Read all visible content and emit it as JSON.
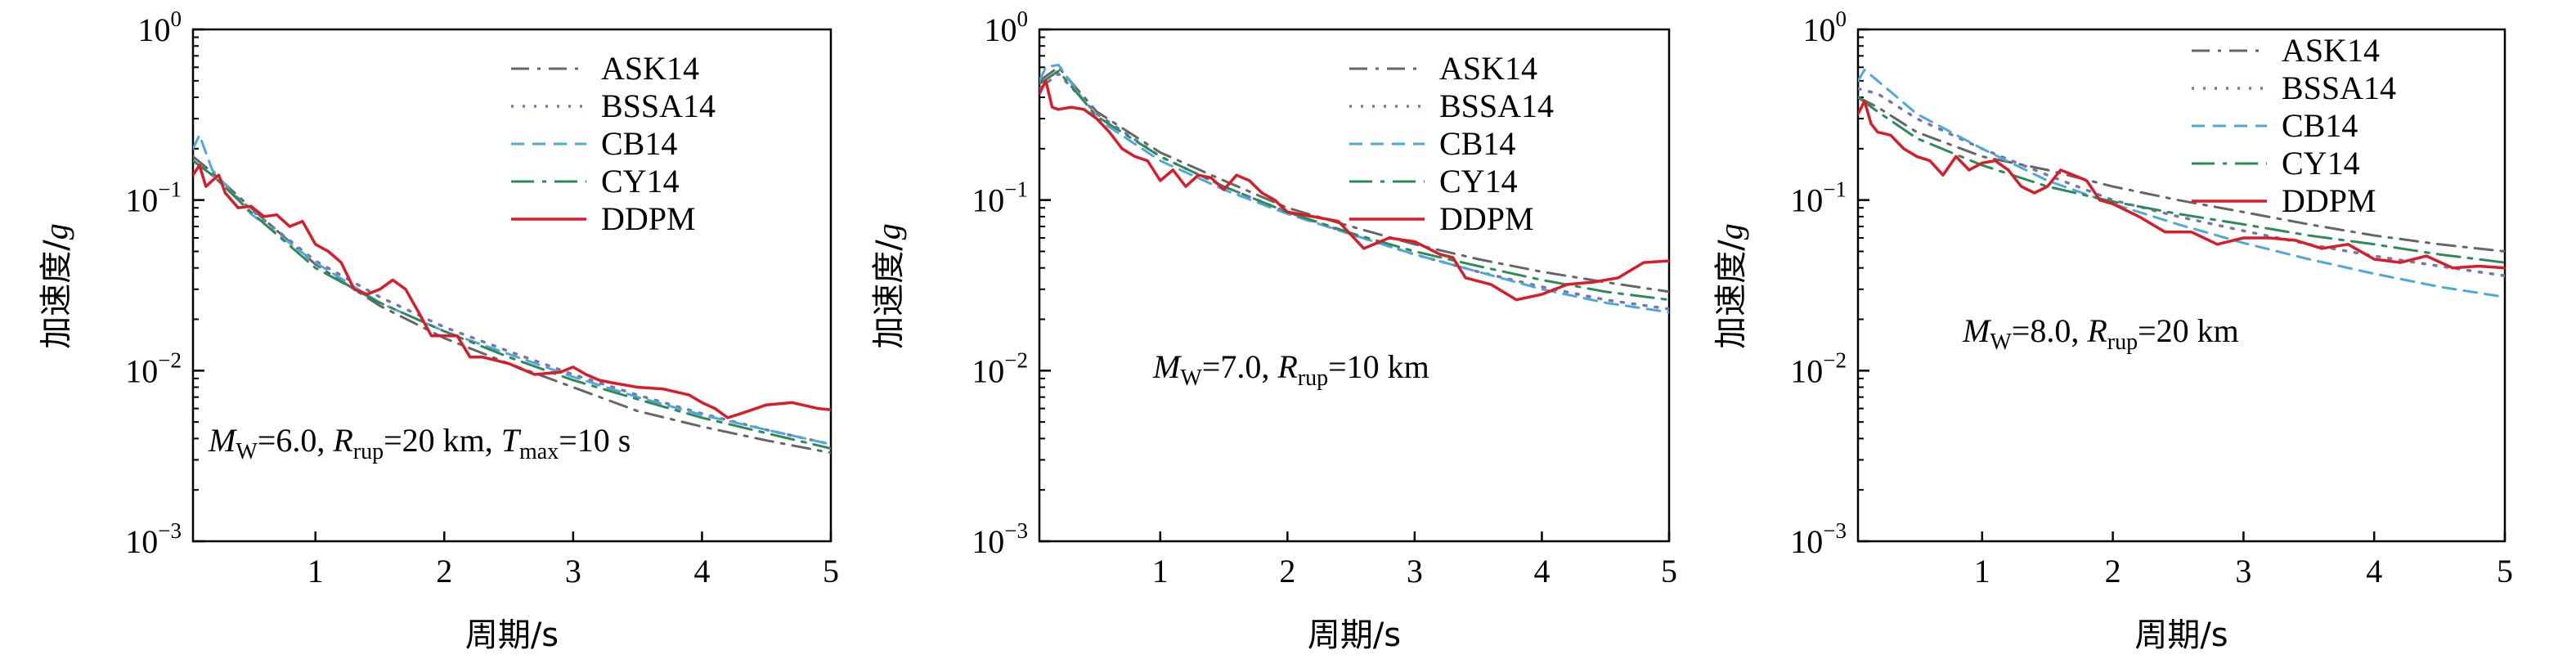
{
  "figure": {
    "colors": {
      "ASK14": "#666666",
      "BSSA14": "#7777aa",
      "CB14": "#4fa8d8",
      "CY14": "#2e8b57",
      "DDPM": "#d91c2a"
    },
    "line_styles": {
      "ASK14": "dashdot",
      "BSSA14": "dotted",
      "CB14": "dashed",
      "CY14": "dashdot-long",
      "DDPM": "solid"
    }
  },
  "chart_data": [
    {
      "type": "line",
      "y_scale": "log",
      "xlabel": "周期/s",
      "ylabel": "加速度/g",
      "ylabel_prefix": "加速度/",
      "ylabel_var": "g",
      "xlim": [
        0.05,
        5
      ],
      "ylim": [
        0.001,
        1
      ],
      "xticks": [
        1,
        2,
        3,
        4,
        5
      ],
      "yticks": [
        0.001,
        0.01,
        0.1,
        1
      ],
      "yticklabels": [
        {
          "base": "10",
          "exp": "−3"
        },
        {
          "base": "10",
          "exp": "−2"
        },
        {
          "base": "10",
          "exp": "−1"
        },
        {
          "base": "10",
          "exp": "0"
        }
      ],
      "legend": [
        "ASK14",
        "BSSA14",
        "CB14",
        "CY14",
        "DDPM"
      ],
      "legend_loc": "top-right",
      "annotation": "MW=6.0, Rrup=20 km, Tmax=10 s",
      "annotation_parts": {
        "mag": "6.0",
        "rrup": "20 km",
        "tmax": "10 s"
      },
      "series": [
        {
          "name": "ASK14",
          "x": [
            0.05,
            0.2,
            0.5,
            1,
            1.5,
            2,
            2.5,
            3,
            3.5,
            4,
            4.5,
            5
          ],
          "values": [
            0.18,
            0.145,
            0.09,
            0.042,
            0.024,
            0.0155,
            0.011,
            0.008,
            0.0058,
            0.0047,
            0.0039,
            0.0033
          ]
        },
        {
          "name": "BSSA14",
          "x": [
            0.05,
            0.2,
            0.5,
            1,
            1.5,
            2,
            2.5,
            3,
            3.5,
            4,
            4.5,
            5
          ],
          "values": [
            0.17,
            0.14,
            0.088,
            0.044,
            0.027,
            0.018,
            0.013,
            0.0095,
            0.0072,
            0.0056,
            0.0045,
            0.0037
          ]
        },
        {
          "name": "CB14",
          "x": [
            0.05,
            0.1,
            0.2,
            0.5,
            1,
            1.5,
            2,
            2.5,
            3,
            3.5,
            4,
            4.5,
            5
          ],
          "values": [
            0.2,
            0.24,
            0.15,
            0.083,
            0.043,
            0.025,
            0.017,
            0.0125,
            0.0092,
            0.007,
            0.0055,
            0.0045,
            0.0037
          ]
        },
        {
          "name": "CY14",
          "x": [
            0.05,
            0.2,
            0.5,
            1,
            1.5,
            2,
            2.5,
            3,
            3.5,
            4,
            4.5,
            5
          ],
          "values": [
            0.17,
            0.14,
            0.085,
            0.04,
            0.025,
            0.017,
            0.012,
            0.0088,
            0.0068,
            0.0053,
            0.0043,
            0.0035
          ]
        },
        {
          "name": "DDPM",
          "x": [
            0.05,
            0.1,
            0.15,
            0.2,
            0.25,
            0.3,
            0.4,
            0.5,
            0.6,
            0.7,
            0.8,
            0.9,
            1.0,
            1.1,
            1.2,
            1.3,
            1.4,
            1.5,
            1.6,
            1.7,
            1.8,
            1.9,
            2.0,
            2.1,
            2.2,
            2.3,
            2.5,
            2.7,
            2.9,
            3.0,
            3.1,
            3.2,
            3.3,
            3.5,
            3.7,
            3.9,
            4.0,
            4.1,
            4.2,
            4.3,
            4.5,
            4.7,
            4.9,
            5.0
          ],
          "values": [
            0.14,
            0.16,
            0.12,
            0.13,
            0.14,
            0.11,
            0.09,
            0.092,
            0.08,
            0.082,
            0.07,
            0.075,
            0.055,
            0.05,
            0.043,
            0.03,
            0.028,
            0.03,
            0.034,
            0.03,
            0.022,
            0.016,
            0.016,
            0.016,
            0.012,
            0.012,
            0.011,
            0.0095,
            0.0098,
            0.0105,
            0.0095,
            0.0088,
            0.0085,
            0.008,
            0.0078,
            0.0072,
            0.0065,
            0.006,
            0.0053,
            0.0056,
            0.0063,
            0.0065,
            0.006,
            0.0059
          ]
        }
      ]
    },
    {
      "type": "line",
      "y_scale": "log",
      "xlabel": "周期/s",
      "ylabel": "加速度/g",
      "ylabel_prefix": "加速度/",
      "ylabel_var": "g",
      "xlim": [
        0.05,
        5
      ],
      "ylim": [
        0.001,
        1
      ],
      "xticks": [
        1,
        2,
        3,
        4,
        5
      ],
      "yticks": [
        0.001,
        0.01,
        0.1,
        1
      ],
      "yticklabels": [
        {
          "base": "10",
          "exp": "−3"
        },
        {
          "base": "10",
          "exp": "−2"
        },
        {
          "base": "10",
          "exp": "−1"
        },
        {
          "base": "10",
          "exp": "0"
        }
      ],
      "legend": [
        "ASK14",
        "BSSA14",
        "CB14",
        "CY14",
        "DDPM"
      ],
      "legend_loc": "top-right",
      "annotation": "MW=7.0, Rrup=10 km",
      "annotation_parts": {
        "mag": "7.0",
        "rrup": "10 km"
      },
      "series": [
        {
          "name": "ASK14",
          "x": [
            0.05,
            0.2,
            0.5,
            1,
            1.5,
            2,
            2.5,
            3,
            3.5,
            4,
            4.5,
            5
          ],
          "values": [
            0.5,
            0.6,
            0.33,
            0.19,
            0.13,
            0.09,
            0.07,
            0.055,
            0.045,
            0.038,
            0.033,
            0.029
          ]
        },
        {
          "name": "BSSA14",
          "x": [
            0.05,
            0.2,
            0.5,
            1,
            1.5,
            2,
            2.5,
            3,
            3.5,
            4,
            4.5,
            5
          ],
          "values": [
            0.45,
            0.55,
            0.32,
            0.18,
            0.12,
            0.085,
            0.063,
            0.048,
            0.038,
            0.031,
            0.026,
            0.023
          ]
        },
        {
          "name": "CB14",
          "x": [
            0.05,
            0.1,
            0.2,
            0.5,
            1,
            1.5,
            2,
            2.5,
            3,
            3.5,
            4,
            4.5,
            5
          ],
          "values": [
            0.5,
            0.6,
            0.62,
            0.3,
            0.17,
            0.115,
            0.083,
            0.063,
            0.048,
            0.038,
            0.03,
            0.025,
            0.022
          ]
        },
        {
          "name": "CY14",
          "x": [
            0.05,
            0.2,
            0.5,
            1,
            1.5,
            2,
            2.5,
            3,
            3.5,
            4,
            4.5,
            5
          ],
          "values": [
            0.48,
            0.57,
            0.31,
            0.18,
            0.12,
            0.085,
            0.064,
            0.05,
            0.041,
            0.034,
            0.029,
            0.026
          ]
        },
        {
          "name": "DDPM",
          "x": [
            0.05,
            0.1,
            0.15,
            0.2,
            0.3,
            0.4,
            0.5,
            0.6,
            0.7,
            0.8,
            0.9,
            1.0,
            1.1,
            1.2,
            1.3,
            1.4,
            1.5,
            1.6,
            1.7,
            1.8,
            1.9,
            2.0,
            2.2,
            2.4,
            2.6,
            2.8,
            3.0,
            3.2,
            3.3,
            3.4,
            3.6,
            3.8,
            4.0,
            4.2,
            4.4,
            4.6,
            4.8,
            5.0
          ],
          "values": [
            0.42,
            0.5,
            0.35,
            0.34,
            0.35,
            0.34,
            0.3,
            0.25,
            0.2,
            0.18,
            0.17,
            0.13,
            0.15,
            0.12,
            0.14,
            0.135,
            0.115,
            0.14,
            0.13,
            0.11,
            0.1,
            0.085,
            0.08,
            0.075,
            0.052,
            0.06,
            0.057,
            0.048,
            0.046,
            0.035,
            0.032,
            0.026,
            0.028,
            0.032,
            0.033,
            0.035,
            0.043,
            0.044
          ]
        }
      ]
    },
    {
      "type": "line",
      "y_scale": "log",
      "xlabel": "周期/s",
      "ylabel": "加速度/g",
      "ylabel_prefix": "加速度/",
      "ylabel_var": "g",
      "xlim": [
        0.05,
        5
      ],
      "ylim": [
        0.001,
        1
      ],
      "xticks": [
        1,
        2,
        3,
        4,
        5
      ],
      "yticks": [
        0.001,
        0.01,
        0.1,
        1
      ],
      "yticklabels": [
        {
          "base": "10",
          "exp": "−3"
        },
        {
          "base": "10",
          "exp": "−2"
        },
        {
          "base": "10",
          "exp": "−1"
        },
        {
          "base": "10",
          "exp": "0"
        }
      ],
      "legend": [
        "ASK14",
        "BSSA14",
        "CB14",
        "CY14",
        "DDPM"
      ],
      "legend_loc": "top-right",
      "annotation": "MW=8.0, Rrup=20 km",
      "annotation_parts": {
        "mag": "8.0",
        "rrup": "20 km"
      },
      "series": [
        {
          "name": "ASK14",
          "x": [
            0.05,
            0.2,
            0.5,
            1,
            1.5,
            2,
            2.5,
            3,
            3.5,
            4,
            4.5,
            5
          ],
          "values": [
            0.4,
            0.35,
            0.25,
            0.18,
            0.15,
            0.12,
            0.1,
            0.085,
            0.072,
            0.062,
            0.055,
            0.05
          ]
        },
        {
          "name": "BSSA14",
          "x": [
            0.05,
            0.2,
            0.5,
            1,
            1.5,
            2,
            2.5,
            3,
            3.5,
            4,
            4.5,
            5
          ],
          "values": [
            0.45,
            0.42,
            0.3,
            0.2,
            0.14,
            0.1,
            0.08,
            0.066,
            0.055,
            0.047,
            0.041,
            0.036
          ]
        },
        {
          "name": "CB14",
          "x": [
            0.05,
            0.1,
            0.2,
            0.5,
            1,
            1.5,
            2,
            2.5,
            3,
            3.5,
            4,
            4.5,
            5
          ],
          "values": [
            0.5,
            0.58,
            0.5,
            0.32,
            0.2,
            0.13,
            0.095,
            0.072,
            0.056,
            0.045,
            0.037,
            0.031,
            0.027
          ]
        },
        {
          "name": "CY14",
          "x": [
            0.05,
            0.2,
            0.5,
            1,
            1.5,
            2,
            2.5,
            3,
            3.5,
            4,
            4.5,
            5
          ],
          "values": [
            0.4,
            0.33,
            0.23,
            0.16,
            0.12,
            0.098,
            0.083,
            0.072,
            0.062,
            0.055,
            0.048,
            0.043
          ]
        },
        {
          "name": "DDPM",
          "x": [
            0.05,
            0.1,
            0.15,
            0.2,
            0.3,
            0.4,
            0.5,
            0.6,
            0.7,
            0.8,
            0.9,
            1.0,
            1.1,
            1.2,
            1.3,
            1.4,
            1.5,
            1.6,
            1.7,
            1.8,
            1.9,
            2.0,
            2.2,
            2.4,
            2.6,
            2.8,
            3.0,
            3.2,
            3.4,
            3.6,
            3.8,
            4.0,
            4.2,
            4.4,
            4.6,
            4.8,
            5.0
          ],
          "values": [
            0.32,
            0.38,
            0.28,
            0.25,
            0.24,
            0.2,
            0.18,
            0.17,
            0.14,
            0.18,
            0.15,
            0.165,
            0.17,
            0.15,
            0.12,
            0.11,
            0.12,
            0.15,
            0.14,
            0.13,
            0.1,
            0.095,
            0.08,
            0.065,
            0.065,
            0.055,
            0.06,
            0.06,
            0.058,
            0.052,
            0.055,
            0.045,
            0.043,
            0.047,
            0.04,
            0.041,
            0.04
          ]
        }
      ]
    }
  ]
}
